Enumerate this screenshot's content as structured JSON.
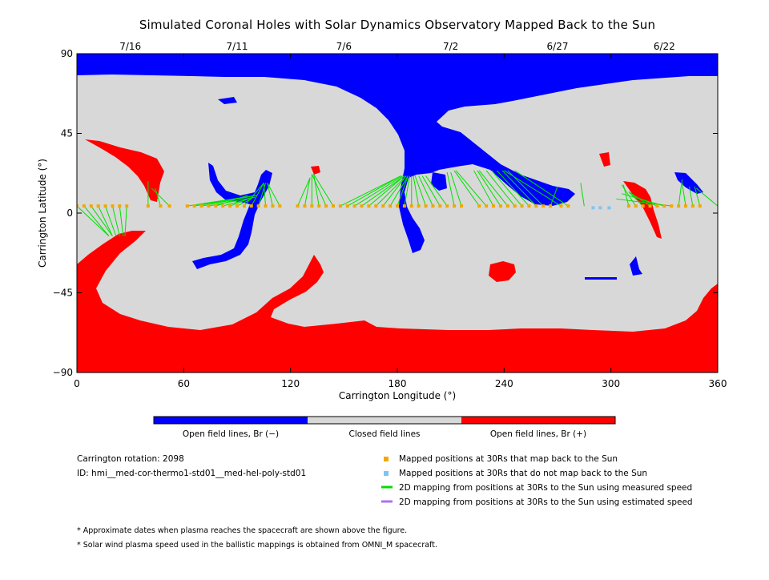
{
  "chart_data": {
    "type": "map",
    "title": "Simulated Coronal Holes with Solar Dynamics Observatory Mapped Back to the Sun",
    "xlabel": "Carrington Longitude (°)",
    "ylabel": "Carrington Latitude (°)",
    "xlim": [
      0,
      360
    ],
    "ylim": [
      -90,
      90
    ],
    "x_ticks": [
      0,
      60,
      120,
      180,
      240,
      300,
      360
    ],
    "y_ticks": [
      90,
      45,
      0,
      -45,
      -90
    ],
    "y_tick_labels": [
      "90",
      "45",
      "0",
      "−45",
      "−90"
    ],
    "top_dates": [
      {
        "label": "7/16",
        "lon": 30
      },
      {
        "label": "7/11",
        "lon": 90
      },
      {
        "label": "7/6",
        "lon": 150
      },
      {
        "label": "7/2",
        "lon": 210
      },
      {
        "label": "6/27",
        "lon": 270
      },
      {
        "label": "6/22",
        "lon": 330
      }
    ],
    "colors": {
      "open_negative": "#0000ff",
      "closed": "#d8d8d8",
      "open_positive": "#ff0000",
      "mapped": "#f0a800",
      "not_mapped": "#80c4f0",
      "measured_line": "#00e000",
      "estimated_line": "#b070f0"
    },
    "mapped_points_30Rs": [
      {
        "lon": 0,
        "lat": 4
      },
      {
        "lon": 4,
        "lat": 4
      },
      {
        "lon": 8,
        "lat": 4
      },
      {
        "lon": 12,
        "lat": 4
      },
      {
        "lon": 16,
        "lat": 4
      },
      {
        "lon": 20,
        "lat": 4
      },
      {
        "lon": 24,
        "lat": 4
      },
      {
        "lon": 28,
        "lat": 4
      },
      {
        "lon": 40,
        "lat": 4
      },
      {
        "lon": 47,
        "lat": 4
      },
      {
        "lon": 52,
        "lat": 4
      },
      {
        "lon": 62,
        "lat": 4
      },
      {
        "lon": 66,
        "lat": 4
      },
      {
        "lon": 70,
        "lat": 4
      },
      {
        "lon": 74,
        "lat": 4
      },
      {
        "lon": 78,
        "lat": 4
      },
      {
        "lon": 82,
        "lat": 4
      },
      {
        "lon": 86,
        "lat": 4
      },
      {
        "lon": 90,
        "lat": 4
      },
      {
        "lon": 94,
        "lat": 4
      },
      {
        "lon": 98,
        "lat": 4
      },
      {
        "lon": 102,
        "lat": 4
      },
      {
        "lon": 106,
        "lat": 4
      },
      {
        "lon": 110,
        "lat": 4
      },
      {
        "lon": 114,
        "lat": 4
      },
      {
        "lon": 124,
        "lat": 4
      },
      {
        "lon": 128,
        "lat": 4
      },
      {
        "lon": 132,
        "lat": 4
      },
      {
        "lon": 136,
        "lat": 4
      },
      {
        "lon": 140,
        "lat": 4
      },
      {
        "lon": 144,
        "lat": 4
      },
      {
        "lon": 148,
        "lat": 4
      },
      {
        "lon": 152,
        "lat": 4
      },
      {
        "lon": 156,
        "lat": 4
      },
      {
        "lon": 160,
        "lat": 4
      },
      {
        "lon": 164,
        "lat": 4
      },
      {
        "lon": 168,
        "lat": 4
      },
      {
        "lon": 172,
        "lat": 4
      },
      {
        "lon": 176,
        "lat": 4
      },
      {
        "lon": 180,
        "lat": 4
      },
      {
        "lon": 184,
        "lat": 4
      },
      {
        "lon": 188,
        "lat": 4
      },
      {
        "lon": 192,
        "lat": 4
      },
      {
        "lon": 196,
        "lat": 4
      },
      {
        "lon": 200,
        "lat": 4
      },
      {
        "lon": 204,
        "lat": 4
      },
      {
        "lon": 208,
        "lat": 4
      },
      {
        "lon": 212,
        "lat": 4
      },
      {
        "lon": 216,
        "lat": 4
      },
      {
        "lon": 226,
        "lat": 4
      },
      {
        "lon": 230,
        "lat": 4
      },
      {
        "lon": 234,
        "lat": 4
      },
      {
        "lon": 238,
        "lat": 4
      },
      {
        "lon": 242,
        "lat": 4
      },
      {
        "lon": 246,
        "lat": 4
      },
      {
        "lon": 250,
        "lat": 4
      },
      {
        "lon": 254,
        "lat": 4
      },
      {
        "lon": 258,
        "lat": 4
      },
      {
        "lon": 262,
        "lat": 4
      },
      {
        "lon": 266,
        "lat": 4
      },
      {
        "lon": 272,
        "lat": 4
      },
      {
        "lon": 276,
        "lat": 4
      },
      {
        "lon": 310,
        "lat": 4
      },
      {
        "lon": 314,
        "lat": 4
      },
      {
        "lon": 318,
        "lat": 4
      },
      {
        "lon": 322,
        "lat": 4
      },
      {
        "lon": 326,
        "lat": 4
      },
      {
        "lon": 330,
        "lat": 4
      },
      {
        "lon": 334,
        "lat": 4
      },
      {
        "lon": 338,
        "lat": 4
      },
      {
        "lon": 342,
        "lat": 4
      },
      {
        "lon": 346,
        "lat": 4
      },
      {
        "lon": 350,
        "lat": 4
      }
    ],
    "unmapped_points_30Rs": [
      {
        "lon": 290,
        "lat": 3
      },
      {
        "lon": 294,
        "lat": 3
      },
      {
        "lon": 299,
        "lat": 3
      }
    ],
    "mapping_lines_measured": [
      {
        "x1": 0,
        "y1": 4,
        "x2": 18,
        "y2": -13
      },
      {
        "x1": 4,
        "y1": 4,
        "x2": 18,
        "y2": -13
      },
      {
        "x1": 8,
        "y1": 4,
        "x2": 20,
        "y2": -13
      },
      {
        "x1": 12,
        "y1": 4,
        "x2": 20,
        "y2": -13
      },
      {
        "x1": 16,
        "y1": 4,
        "x2": 22,
        "y2": -13
      },
      {
        "x1": 20,
        "y1": 4,
        "x2": 24,
        "y2": -13
      },
      {
        "x1": 24,
        "y1": 4,
        "x2": 26,
        "y2": -13
      },
      {
        "x1": 28,
        "y1": 4,
        "x2": 27,
        "y2": -13
      },
      {
        "x1": 0,
        "y1": 4,
        "x2": 0,
        "y2": 8
      },
      {
        "x1": 40,
        "y1": 4,
        "x2": 40,
        "y2": 18
      },
      {
        "x1": 47,
        "y1": 4,
        "x2": 44,
        "y2": 14
      },
      {
        "x1": 52,
        "y1": 4,
        "x2": 42,
        "y2": 14
      },
      {
        "x1": 62,
        "y1": 4,
        "x2": 101,
        "y2": 10
      },
      {
        "x1": 66,
        "y1": 4,
        "x2": 101,
        "y2": 10
      },
      {
        "x1": 70,
        "y1": 4,
        "x2": 101,
        "y2": 10
      },
      {
        "x1": 74,
        "y1": 4,
        "x2": 100,
        "y2": 9
      },
      {
        "x1": 78,
        "y1": 4,
        "x2": 96,
        "y2": 10
      },
      {
        "x1": 82,
        "y1": 4,
        "x2": 100,
        "y2": 9
      },
      {
        "x1": 86,
        "y1": 4,
        "x2": 99,
        "y2": 9
      },
      {
        "x1": 90,
        "y1": 4,
        "x2": 98,
        "y2": 8
      },
      {
        "x1": 94,
        "y1": 4,
        "x2": 105,
        "y2": 17
      },
      {
        "x1": 98,
        "y1": 4,
        "x2": 105,
        "y2": 17
      },
      {
        "x1": 102,
        "y1": 4,
        "x2": 106,
        "y2": 17
      },
      {
        "x1": 106,
        "y1": 4,
        "x2": 105,
        "y2": 17
      },
      {
        "x1": 110,
        "y1": 4,
        "x2": 107,
        "y2": 17
      },
      {
        "x1": 114,
        "y1": 4,
        "x2": 107,
        "y2": 17
      },
      {
        "x1": 124,
        "y1": 4,
        "x2": 131,
        "y2": 20
      },
      {
        "x1": 128,
        "y1": 4,
        "x2": 131,
        "y2": 20
      },
      {
        "x1": 132,
        "y1": 4,
        "x2": 132,
        "y2": 22
      },
      {
        "x1": 136,
        "y1": 4,
        "x2": 133,
        "y2": 22
      },
      {
        "x1": 140,
        "y1": 4,
        "x2": 132,
        "y2": 22
      },
      {
        "x1": 144,
        "y1": 4,
        "x2": 133,
        "y2": 22
      },
      {
        "x1": 148,
        "y1": 4,
        "x2": 182,
        "y2": 21
      },
      {
        "x1": 152,
        "y1": 4,
        "x2": 182,
        "y2": 21
      },
      {
        "x1": 156,
        "y1": 4,
        "x2": 183,
        "y2": 21
      },
      {
        "x1": 160,
        "y1": 4,
        "x2": 184,
        "y2": 21
      },
      {
        "x1": 164,
        "y1": 4,
        "x2": 184,
        "y2": 21
      },
      {
        "x1": 168,
        "y1": 4,
        "x2": 185,
        "y2": 21
      },
      {
        "x1": 172,
        "y1": 4,
        "x2": 185,
        "y2": 21
      },
      {
        "x1": 176,
        "y1": 4,
        "x2": 186,
        "y2": 21
      },
      {
        "x1": 180,
        "y1": 4,
        "x2": 186,
        "y2": 21
      },
      {
        "x1": 184,
        "y1": 4,
        "x2": 187,
        "y2": 21
      },
      {
        "x1": 188,
        "y1": 4,
        "x2": 188,
        "y2": 21
      },
      {
        "x1": 192,
        "y1": 4,
        "x2": 189,
        "y2": 21
      },
      {
        "x1": 196,
        "y1": 4,
        "x2": 190,
        "y2": 21
      },
      {
        "x1": 200,
        "y1": 4,
        "x2": 192,
        "y2": 21
      },
      {
        "x1": 204,
        "y1": 4,
        "x2": 194,
        "y2": 21
      },
      {
        "x1": 208,
        "y1": 4,
        "x2": 196,
        "y2": 21
      },
      {
        "x1": 212,
        "y1": 4,
        "x2": 208,
        "y2": 23
      },
      {
        "x1": 216,
        "y1": 4,
        "x2": 210,
        "y2": 23
      },
      {
        "x1": 226,
        "y1": 4,
        "x2": 212,
        "y2": 24
      },
      {
        "x1": 230,
        "y1": 4,
        "x2": 213,
        "y2": 24
      },
      {
        "x1": 234,
        "y1": 4,
        "x2": 223,
        "y2": 24
      },
      {
        "x1": 238,
        "y1": 4,
        "x2": 225,
        "y2": 24
      },
      {
        "x1": 242,
        "y1": 4,
        "x2": 226,
        "y2": 24
      },
      {
        "x1": 246,
        "y1": 4,
        "x2": 230,
        "y2": 24
      },
      {
        "x1": 250,
        "y1": 4,
        "x2": 233,
        "y2": 24
      },
      {
        "x1": 254,
        "y1": 4,
        "x2": 236,
        "y2": 24
      },
      {
        "x1": 258,
        "y1": 4,
        "x2": 239,
        "y2": 24
      },
      {
        "x1": 262,
        "y1": 4,
        "x2": 242,
        "y2": 24
      },
      {
        "x1": 266,
        "y1": 4,
        "x2": 270,
        "y2": 15
      },
      {
        "x1": 272,
        "y1": 4,
        "x2": 240,
        "y2": 24
      },
      {
        "x1": 276,
        "y1": 4,
        "x2": 246,
        "y2": 24
      },
      {
        "x1": 285,
        "y1": 4,
        "x2": 283,
        "y2": 17
      },
      {
        "x1": 310,
        "y1": 4,
        "x2": 307,
        "y2": 16
      },
      {
        "x1": 314,
        "y1": 4,
        "x2": 306,
        "y2": 16
      },
      {
        "x1": 318,
        "y1": 4,
        "x2": 310,
        "y2": 12
      },
      {
        "x1": 322,
        "y1": 4,
        "x2": 310,
        "y2": 12
      },
      {
        "x1": 326,
        "y1": 4,
        "x2": 312,
        "y2": 10
      },
      {
        "x1": 330,
        "y1": 4,
        "x2": 306,
        "y2": 11
      },
      {
        "x1": 334,
        "y1": 4,
        "x2": 303,
        "y2": 8
      },
      {
        "x1": 338,
        "y1": 4,
        "x2": 340,
        "y2": 19
      },
      {
        "x1": 342,
        "y1": 4,
        "x2": 340,
        "y2": 17
      },
      {
        "x1": 346,
        "y1": 4,
        "x2": 344,
        "y2": 15
      },
      {
        "x1": 350,
        "y1": 4,
        "x2": 347,
        "y2": 15
      },
      {
        "x1": 360,
        "y1": 4,
        "x2": 348,
        "y2": 14
      }
    ],
    "colorbar_labels": [
      "Open field lines, Br (−)",
      "Closed field lines",
      "Open field lines, Br (+)"
    ],
    "legend": [
      {
        "symbol": "square",
        "color_key": "mapped",
        "label": "Mapped positions at 30Rs that map back to the Sun"
      },
      {
        "symbol": "square",
        "color_key": "not_mapped",
        "label": "Mapped positions at 30Rs that do not map back to the Sun"
      },
      {
        "symbol": "line",
        "color_key": "measured_line",
        "label": "2D mapping from positions at 30Rs to the Sun using measured speed"
      },
      {
        "symbol": "line",
        "color_key": "estimated_line",
        "label": "2D mapping from positions at 30Rs to the Sun using estimated speed"
      }
    ],
    "info": {
      "rotation": "Carrington rotation: 2098",
      "id": "ID: hmi__med-cor-thermo1-std01__med-hel-poly-std01"
    },
    "notes": [
      "* Approximate dates when plasma reaches the spacecraft are shown above the figure.",
      "* Solar wind plasma speed used in the ballistic mappings is obtained from OMNI_M spacecraft."
    ]
  }
}
